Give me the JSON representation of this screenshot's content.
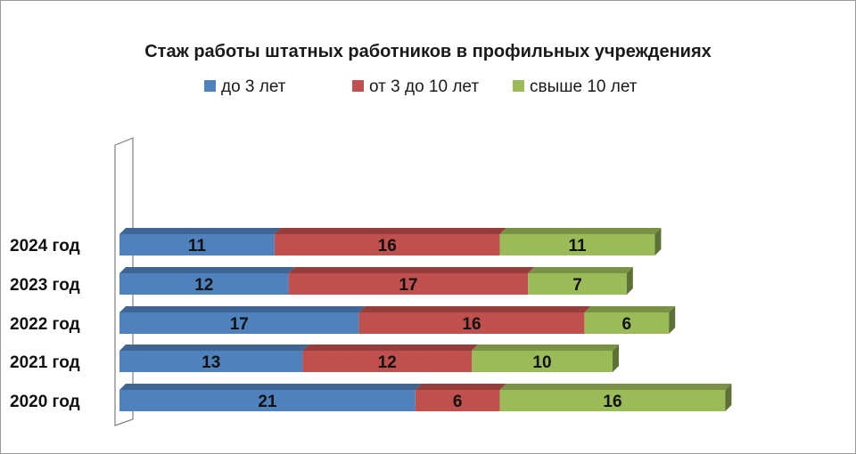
{
  "chart_data": {
    "type": "bar",
    "orientation": "horizontal",
    "stacked": true,
    "three_d": true,
    "title": "Стаж работы  штатных работников  в профильных учреждениях",
    "categories": [
      "2024 год",
      "2023 год",
      "2022 год",
      "2021 год",
      "2020 год"
    ],
    "series": [
      {
        "name": "до  3 лет",
        "color": "#4f81bd",
        "values": [
          11,
          12,
          17,
          13,
          21
        ]
      },
      {
        "name": "от 3 до 10 лет",
        "color": "#c0504d",
        "values": [
          16,
          17,
          16,
          12,
          6
        ]
      },
      {
        "name": "свыше 10 лет",
        "color": "#9bbb59",
        "values": [
          11,
          7,
          6,
          10,
          16
        ]
      }
    ],
    "legend_position": "top",
    "data_labels": true,
    "grid": false,
    "xlim": [
      0,
      45
    ]
  }
}
